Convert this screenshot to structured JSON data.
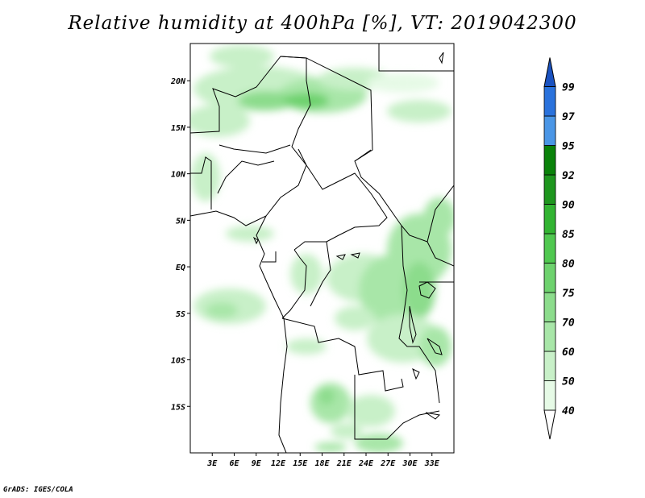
{
  "title": "Relative humidity at 400hPa [%], VT: 2019042300",
  "credit": "GrADS: IGES/COLA",
  "map": {
    "lon_range": [
      0,
      36
    ],
    "lat_range": [
      -20,
      24
    ],
    "lat_ticks": [
      {
        "value": 20,
        "label": "20N"
      },
      {
        "value": 15,
        "label": "15N"
      },
      {
        "value": 10,
        "label": "10N"
      },
      {
        "value": 5,
        "label": "5N"
      },
      {
        "value": 0,
        "label": "EQ"
      },
      {
        "value": -5,
        "label": "5S"
      },
      {
        "value": -10,
        "label": "10S"
      },
      {
        "value": -15,
        "label": "15S"
      }
    ],
    "lon_ticks": [
      {
        "value": 3,
        "label": "3E"
      },
      {
        "value": 6,
        "label": "6E"
      },
      {
        "value": 9,
        "label": "9E"
      },
      {
        "value": 12,
        "label": "12E"
      },
      {
        "value": 15,
        "label": "15E"
      },
      {
        "value": 18,
        "label": "18E"
      },
      {
        "value": 21,
        "label": "21E"
      },
      {
        "value": 24,
        "label": "24E"
      },
      {
        "value": 27,
        "label": "27E"
      },
      {
        "value": 30,
        "label": "30E"
      },
      {
        "value": 33,
        "label": "33E"
      }
    ]
  },
  "colorbar": {
    "levels": [
      "40",
      "50",
      "60",
      "70",
      "75",
      "80",
      "85",
      "90",
      "92",
      "95",
      "97",
      "99"
    ],
    "colors": [
      "#ffffff",
      "#e6fae6",
      "#c8f0c8",
      "#a8e6a8",
      "#8cdc8c",
      "#6ed26e",
      "#50c850",
      "#32b432",
      "#1e961e",
      "#0a820a",
      "#4a96e6",
      "#2a72dc",
      "#1a52c0"
    ]
  }
}
